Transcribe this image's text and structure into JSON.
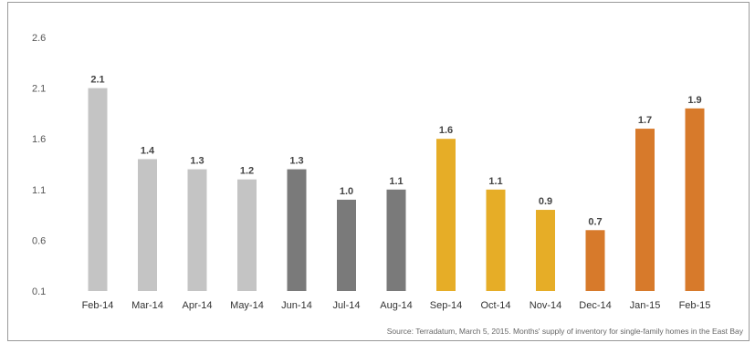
{
  "chart_data": {
    "type": "bar",
    "title": "",
    "xlabel": "",
    "ylabel": "",
    "ylim": [
      0.1,
      2.6
    ],
    "yticks": [
      "2.6",
      "2.1",
      "1.6",
      "1.1",
      "0.6",
      "0.1"
    ],
    "ytick_values": [
      2.6,
      2.1,
      1.6,
      1.1,
      0.6,
      0.1
    ],
    "grid": false,
    "categories": [
      "Feb-14",
      "Mar-14",
      "Apr-14",
      "May-14",
      "Jun-14",
      "Jul-14",
      "Aug-14",
      "Sep-14",
      "Oct-14",
      "Nov-14",
      "Dec-14",
      "Jan-15",
      "Feb-15"
    ],
    "values": [
      2.1,
      1.4,
      1.3,
      1.2,
      1.3,
      1.0,
      1.1,
      1.6,
      1.1,
      0.9,
      0.7,
      1.7,
      1.9
    ],
    "value_labels": [
      "2.1",
      "1.4",
      "1.3",
      "1.2",
      "1.3",
      "1.0",
      "1.1",
      "1.6",
      "1.1",
      "0.9",
      "0.7",
      "1.7",
      "1.9"
    ],
    "bar_colors": [
      "#c4c4c4",
      "#c4c4c4",
      "#c4c4c4",
      "#c4c4c4",
      "#7a7a7a",
      "#7a7a7a",
      "#7a7a7a",
      "#e6ad27",
      "#e6ad27",
      "#e6ad27",
      "#d77a2b",
      "#d77a2b",
      "#d77a2b"
    ],
    "source": "Source: Terradatum, March 5, 2015. Months' supply of inventory for single-family homes in the East Bay"
  }
}
